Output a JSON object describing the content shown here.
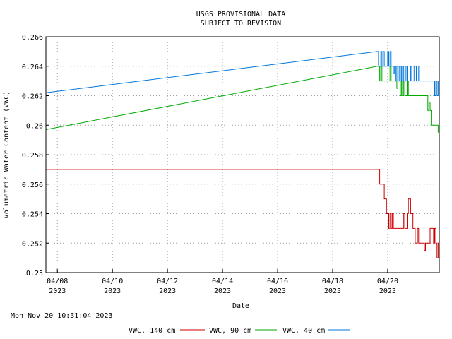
{
  "chart_data": {
    "type": "line",
    "title": "USGS PROVISIONAL DATA",
    "subtitle": "SUBJECT TO REVISION",
    "xlabel": "Date",
    "ylabel": "Volumetric Water Content (VWC)",
    "timestamp": "Mon Nov 20 10:31:04 2023",
    "xlim": [
      "2023-04-07T14:00",
      "2023-04-21T21:00"
    ],
    "ylim": [
      0.25,
      0.266
    ],
    "grid": true,
    "legend_position": "bottom",
    "x_ticks": [
      {
        "date": "2023-04-08",
        "line1": "04/08",
        "line2": "2023"
      },
      {
        "date": "2023-04-10",
        "line1": "04/10",
        "line2": "2023"
      },
      {
        "date": "2023-04-12",
        "line1": "04/12",
        "line2": "2023"
      },
      {
        "date": "2023-04-14",
        "line1": "04/14",
        "line2": "2023"
      },
      {
        "date": "2023-04-16",
        "line1": "04/16",
        "line2": "2023"
      },
      {
        "date": "2023-04-18",
        "line1": "04/18",
        "line2": "2023"
      },
      {
        "date": "2023-04-20",
        "line1": "04/20",
        "line2": "2023"
      }
    ],
    "y_ticks": [
      {
        "value": 0.25,
        "label": "0.25"
      },
      {
        "value": 0.252,
        "label": "0.252"
      },
      {
        "value": 0.254,
        "label": "0.254"
      },
      {
        "value": 0.256,
        "label": "0.256"
      },
      {
        "value": 0.258,
        "label": "0.258"
      },
      {
        "value": 0.26,
        "label": "0.26"
      },
      {
        "value": 0.262,
        "label": "0.262"
      },
      {
        "value": 0.264,
        "label": "0.264"
      },
      {
        "value": 0.266,
        "label": "0.266"
      }
    ],
    "series": [
      {
        "name": "VWC, 140 cm",
        "color": "#cc0000",
        "step": true,
        "points": [
          [
            "2023-04-07T14:00",
            0.257
          ],
          [
            "2023-04-19T15:00",
            0.257
          ],
          [
            "2023-04-19T17:00",
            0.256
          ],
          [
            "2023-04-19T21:00",
            0.255
          ],
          [
            "2023-04-19T23:00",
            0.254
          ],
          [
            "2023-04-20T01:00",
            0.253
          ],
          [
            "2023-04-20T02:00",
            0.254
          ],
          [
            "2023-04-20T03:00",
            0.253
          ],
          [
            "2023-04-20T04:00",
            0.254
          ],
          [
            "2023-04-20T05:00",
            0.253
          ],
          [
            "2023-04-20T14:00",
            0.254
          ],
          [
            "2023-04-20T15:00",
            0.253
          ],
          [
            "2023-04-20T17:00",
            0.254
          ],
          [
            "2023-04-20T18:00",
            0.255
          ],
          [
            "2023-04-20T20:00",
            0.254
          ],
          [
            "2023-04-20T22:00",
            0.253
          ],
          [
            "2023-04-21T00:00",
            0.252
          ],
          [
            "2023-04-21T02:00",
            0.253
          ],
          [
            "2023-04-21T03:00",
            0.252
          ],
          [
            "2023-04-21T08:00",
            0.2515
          ],
          [
            "2023-04-21T09:00",
            0.252
          ],
          [
            "2023-04-21T13:00",
            0.253
          ],
          [
            "2023-04-21T16:00",
            0.252
          ],
          [
            "2023-04-21T17:00",
            0.253
          ],
          [
            "2023-04-21T18:00",
            0.252
          ],
          [
            "2023-04-21T19:00",
            0.251
          ],
          [
            "2023-04-21T20:00",
            0.252
          ],
          [
            "2023-04-21T21:00",
            0.2515
          ]
        ]
      },
      {
        "name": "VWC, 90 cm",
        "color": "#00aa00",
        "step": true,
        "points": [
          [
            "2023-04-07T14:00",
            0.2597
          ],
          [
            "2023-04-19T15:00",
            0.264
          ],
          [
            "2023-04-19T17:00",
            0.263
          ],
          [
            "2023-04-19T18:00",
            0.264
          ],
          [
            "2023-04-19T19:00",
            0.263
          ],
          [
            "2023-04-20T02:00",
            0.264
          ],
          [
            "2023-04-20T03:00",
            0.263
          ],
          [
            "2023-04-20T08:00",
            0.2625
          ],
          [
            "2023-04-20T09:00",
            0.263
          ],
          [
            "2023-04-20T11:00",
            0.262
          ],
          [
            "2023-04-20T12:00",
            0.263
          ],
          [
            "2023-04-20T13:00",
            0.262
          ],
          [
            "2023-04-20T14:00",
            0.263
          ],
          [
            "2023-04-20T15:00",
            0.262
          ],
          [
            "2023-04-20T17:00",
            0.263
          ],
          [
            "2023-04-20T18:00",
            0.262
          ],
          [
            "2023-04-21T11:00",
            0.261
          ],
          [
            "2023-04-21T12:00",
            0.2615
          ],
          [
            "2023-04-21T13:00",
            0.261
          ],
          [
            "2023-04-21T14:00",
            0.26
          ],
          [
            "2023-04-21T20:00",
            0.2595
          ]
        ]
      },
      {
        "name": "VWC, 40 cm",
        "color": "#0077dd",
        "step": true,
        "points": [
          [
            "2023-04-07T14:00",
            0.2622
          ],
          [
            "2023-04-19T15:00",
            0.265
          ],
          [
            "2023-04-19T16:00",
            0.264
          ],
          [
            "2023-04-19T18:00",
            0.265
          ],
          [
            "2023-04-19T19:00",
            0.264
          ],
          [
            "2023-04-19T20:00",
            0.265
          ],
          [
            "2023-04-19T21:00",
            0.264
          ],
          [
            "2023-04-20T00:00",
            0.265
          ],
          [
            "2023-04-20T01:00",
            0.264
          ],
          [
            "2023-04-20T02:00",
            0.265
          ],
          [
            "2023-04-20T03:00",
            0.264
          ],
          [
            "2023-04-20T05:00",
            0.2635
          ],
          [
            "2023-04-20T06:00",
            0.264
          ],
          [
            "2023-04-20T07:00",
            0.263
          ],
          [
            "2023-04-20T08:00",
            0.264
          ],
          [
            "2023-04-20T10:00",
            0.263
          ],
          [
            "2023-04-20T11:00",
            0.264
          ],
          [
            "2023-04-20T12:00",
            0.263
          ],
          [
            "2023-04-20T13:00",
            0.264
          ],
          [
            "2023-04-20T14:00",
            0.263
          ],
          [
            "2023-04-20T16:00",
            0.264
          ],
          [
            "2023-04-20T17:00",
            0.263
          ],
          [
            "2023-04-20T20:00",
            0.264
          ],
          [
            "2023-04-20T21:00",
            0.263
          ],
          [
            "2023-04-20T23:00",
            0.264
          ],
          [
            "2023-04-21T01:00",
            0.263
          ],
          [
            "2023-04-21T03:00",
            0.264
          ],
          [
            "2023-04-21T04:00",
            0.263
          ],
          [
            "2023-04-21T17:00",
            0.262
          ],
          [
            "2023-04-21T18:00",
            0.263
          ],
          [
            "2023-04-21T19:00",
            0.262
          ],
          [
            "2023-04-21T20:00",
            0.263
          ],
          [
            "2023-04-21T21:00",
            0.262
          ]
        ]
      }
    ]
  }
}
